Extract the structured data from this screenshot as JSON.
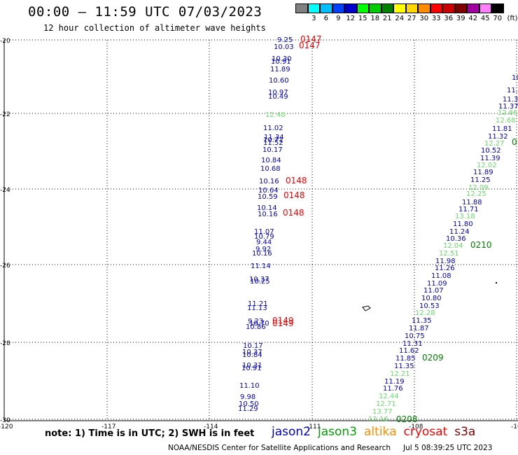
{
  "header": {
    "title": "00:00 – 11:59 UTC 07/03/2023",
    "subtitle": "12 hour collection of altimeter wave heights"
  },
  "legend": {
    "unit": "(ft)",
    "items": [
      {
        "label": "",
        "color": "#808080"
      },
      {
        "label": "3",
        "color": "#00ffff"
      },
      {
        "label": "6",
        "color": "#00bfff"
      },
      {
        "label": "9",
        "color": "#0040ff"
      },
      {
        "label": "12",
        "color": "#0000cd"
      },
      {
        "label": "15",
        "color": "#00ff00"
      },
      {
        "label": "18",
        "color": "#00cc00"
      },
      {
        "label": "21",
        "color": "#008000"
      },
      {
        "label": "24",
        "color": "#ffff00"
      },
      {
        "label": "27",
        "color": "#ffd700"
      },
      {
        "label": "30",
        "color": "#ff8c00"
      },
      {
        "label": "33",
        "color": "#ff0000"
      },
      {
        "label": "36",
        "color": "#cc0000"
      },
      {
        "label": "39",
        "color": "#800000"
      },
      {
        "label": "42",
        "color": "#a000a0"
      },
      {
        "label": "45",
        "color": "#ff80ff"
      },
      {
        "label": "70",
        "color": "#000000"
      }
    ]
  },
  "axes": {
    "lon_labels": [
      "-120",
      "-117",
      "-114",
      "-111",
      "-108",
      "-10"
    ],
    "lat_labels": [
      "-20",
      "-22",
      "-24",
      "-26",
      "-28",
      "-30"
    ]
  },
  "track_colors": {
    "jason2": "#0000cd",
    "jason3": "#66dd66",
    "pass": "#ff0000",
    "pass2": "#008000"
  },
  "track_a": [
    {
      "v": "9.25",
      "c": "jason2"
    },
    {
      "v": "10.03",
      "c": "jason2"
    },
    {
      "v": "10.30",
      "c": "jason2"
    },
    {
      "v": "10.91",
      "c": "jason2"
    },
    {
      "v": "11.89",
      "c": "jason2"
    },
    {
      "v": "10.60",
      "c": "jason2"
    },
    {
      "v": "10.97",
      "c": "jason2"
    },
    {
      "v": "10.49",
      "c": "jason2"
    },
    {
      "v": "12.48",
      "c": "jason3"
    },
    {
      "v": "11.02",
      "c": "jason2"
    },
    {
      "v": "11.34",
      "c": "jason2"
    },
    {
      "v": "10.71",
      "c": "jason2"
    },
    {
      "v": "11.52",
      "c": "jason2"
    },
    {
      "v": "10.17",
      "c": "jason2"
    },
    {
      "v": "10.84",
      "c": "jason2"
    },
    {
      "v": "10.68",
      "c": "jason2"
    },
    {
      "v": "10.16",
      "c": "jason2"
    },
    {
      "v": "10.64",
      "c": "jason2"
    },
    {
      "v": "10.59",
      "c": "jason2"
    },
    {
      "v": "10.14",
      "c": "jason2"
    },
    {
      "v": "10.16",
      "c": "jason2"
    },
    {
      "v": "11.07",
      "c": "jason2"
    },
    {
      "v": "10.79",
      "c": "jason2"
    },
    {
      "v": "9.44",
      "c": "jason2"
    },
    {
      "v": "9.92",
      "c": "jason2"
    },
    {
      "v": "10.16",
      "c": "jason2"
    },
    {
      "v": "11.14",
      "c": "jason2"
    },
    {
      "v": "10.37",
      "c": "jason2"
    },
    {
      "v": "10.25",
      "c": "jason2"
    },
    {
      "v": "11.21",
      "c": "jason2"
    },
    {
      "v": "11.13",
      "c": "jason2"
    },
    {
      "v": "9.23",
      "c": "jason2"
    },
    {
      "v": "10.70",
      "c": "jason2"
    },
    {
      "v": "10.86",
      "c": "jason2"
    },
    {
      "v": "10.17",
      "c": "jason2"
    },
    {
      "v": "10.37",
      "c": "jason2"
    },
    {
      "v": "10.84",
      "c": "jason2"
    },
    {
      "v": "10.31",
      "c": "jason2"
    },
    {
      "v": "10.91",
      "c": "jason2"
    },
    {
      "v": "11.10",
      "c": "jason2"
    },
    {
      "v": "9.98",
      "c": "jason2"
    },
    {
      "v": "10.50",
      "c": "jason2"
    },
    {
      "v": "11.29",
      "c": "jason2"
    }
  ],
  "track_b": [
    {
      "v": "10",
      "c": "jason2"
    },
    {
      "v": "11.",
      "c": "jason2"
    },
    {
      "v": "11.3",
      "c": "jason2"
    },
    {
      "v": "11.37",
      "c": "jason2"
    },
    {
      "v": "12.66",
      "c": "jason3"
    },
    {
      "v": "12.68",
      "c": "jason3"
    },
    {
      "v": "11.81",
      "c": "jason2"
    },
    {
      "v": "11.32",
      "c": "jason2"
    },
    {
      "v": "12.27",
      "c": "jason3"
    },
    {
      "v": "10.52",
      "c": "jason2"
    },
    {
      "v": "11.39",
      "c": "jason2"
    },
    {
      "v": "12.02",
      "c": "jason3"
    },
    {
      "v": "11.89",
      "c": "jason2"
    },
    {
      "v": "11.25",
      "c": "jason2"
    },
    {
      "v": "12.09",
      "c": "jason3"
    },
    {
      "v": "12.25",
      "c": "jason3"
    },
    {
      "v": "11.88",
      "c": "jason2"
    },
    {
      "v": "11.71",
      "c": "jason2"
    },
    {
      "v": "13.18",
      "c": "jason3"
    },
    {
      "v": "11.80",
      "c": "jason2"
    },
    {
      "v": "11.24",
      "c": "jason2"
    },
    {
      "v": "10.36",
      "c": "jason2"
    },
    {
      "v": "12.04",
      "c": "jason3"
    },
    {
      "v": "12.51",
      "c": "jason3"
    },
    {
      "v": "11.98",
      "c": "jason2"
    },
    {
      "v": "11.26",
      "c": "jason2"
    },
    {
      "v": "11.08",
      "c": "jason2"
    },
    {
      "v": "11.09",
      "c": "jason2"
    },
    {
      "v": "11.07",
      "c": "jason2"
    },
    {
      "v": "10.80",
      "c": "jason2"
    },
    {
      "v": "10.53",
      "c": "jason2"
    },
    {
      "v": "12.28",
      "c": "jason3"
    },
    {
      "v": "11.35",
      "c": "jason2"
    },
    {
      "v": "11.87",
      "c": "jason2"
    },
    {
      "v": "10.75",
      "c": "jason2"
    },
    {
      "v": "11.31",
      "c": "jason2"
    },
    {
      "v": "11.62",
      "c": "jason2"
    },
    {
      "v": "11.85",
      "c": "jason2"
    },
    {
      "v": "11.35",
      "c": "jason2"
    },
    {
      "v": "12.21",
      "c": "jason3"
    },
    {
      "v": "11.19",
      "c": "jason2"
    },
    {
      "v": "11.76",
      "c": "jason2"
    },
    {
      "v": "12.44",
      "c": "jason3"
    },
    {
      "v": "12.71",
      "c": "jason3"
    },
    {
      "v": "13.77",
      "c": "jason3"
    },
    {
      "v": "12.16",
      "c": "jason3"
    }
  ],
  "passes": [
    {
      "v": "0147",
      "c": "pass"
    },
    {
      "v": "0147",
      "c": "pass"
    },
    {
      "v": "0148",
      "c": "pass"
    },
    {
      "v": "0148",
      "c": "pass"
    },
    {
      "v": "0148",
      "c": "pass"
    },
    {
      "v": "0149",
      "c": "pass"
    },
    {
      "v": "0149",
      "c": "pass"
    },
    {
      "v": "0",
      "c": "pass2"
    },
    {
      "v": "0210",
      "c": "pass2"
    },
    {
      "v": "0209",
      "c": "pass2"
    },
    {
      "v": "0208",
      "c": "pass2"
    }
  ],
  "note": "note: 1) Time is in UTC; 2) SWH is in feet",
  "satellites": [
    {
      "name": "jason2",
      "color": "#0000cd"
    },
    {
      "name": "jason3",
      "color": "#00a000"
    },
    {
      "name": "altika",
      "color": "#ff8c00"
    },
    {
      "name": "cryosat",
      "color": "#ff0000"
    },
    {
      "name": "s3a",
      "color": "#800000"
    }
  ],
  "footer": {
    "credit": "NOAA/NESDIS Center for Satellite Applications and Research",
    "timestamp": "Jul  5 08:39:25 UTC 2023"
  }
}
